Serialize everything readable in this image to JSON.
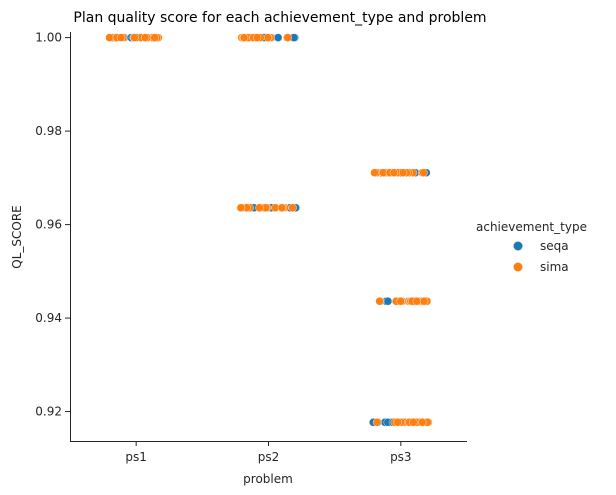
{
  "chart_data": {
    "type": "scatter",
    "title": "Plan quality score for each achievement_type and problem",
    "xlabel": "problem",
    "ylabel": "QL_SCORE",
    "categories": [
      "ps1",
      "ps2",
      "ps3"
    ],
    "yticks": [
      "0.92",
      "0.94",
      "0.96",
      "0.98",
      "1.00"
    ],
    "ylim": [
      0.9137,
      1.0012
    ],
    "grid": false,
    "legend": {
      "title": "achievement_type",
      "placement": "right"
    },
    "series": [
      {
        "name": "seqa",
        "color": "#1f77b4",
        "points": [
          {
            "category": "ps1",
            "y": 1.0
          },
          {
            "category": "ps2",
            "y": 1.0
          },
          {
            "category": "ps2",
            "y": 0.9636
          },
          {
            "category": "ps3",
            "y": 0.9711
          },
          {
            "category": "ps3",
            "y": 0.9436
          },
          {
            "category": "ps3",
            "y": 0.9177
          }
        ]
      },
      {
        "name": "sima",
        "color": "#ff7f0e",
        "points": [
          {
            "category": "ps1",
            "y": 1.0
          },
          {
            "category": "ps2",
            "y": 1.0
          },
          {
            "category": "ps2",
            "y": 0.9636
          },
          {
            "category": "ps3",
            "y": 0.9711
          },
          {
            "category": "ps3",
            "y": 0.9436
          },
          {
            "category": "ps3",
            "y": 0.9177
          }
        ]
      }
    ]
  }
}
